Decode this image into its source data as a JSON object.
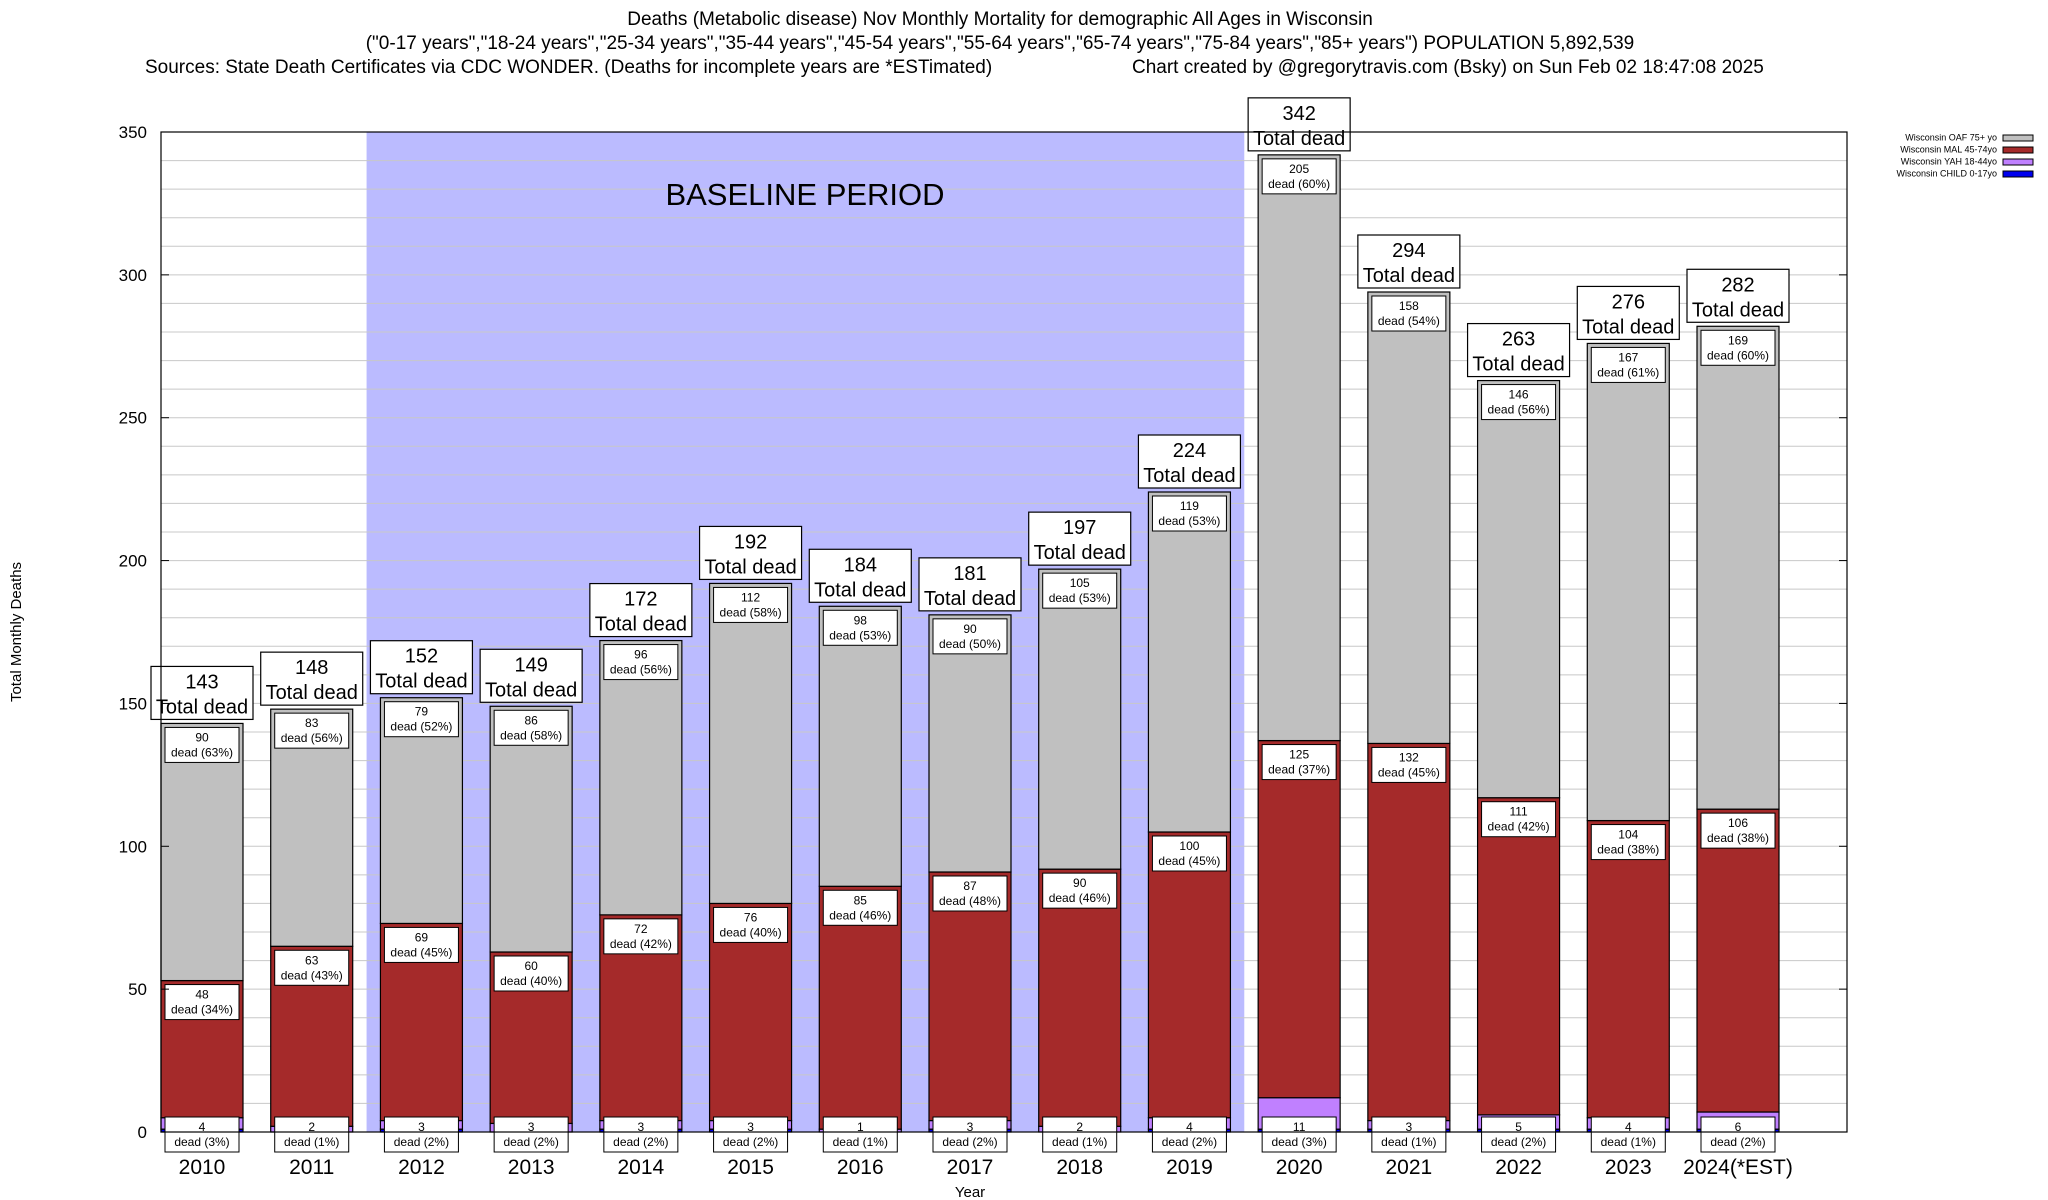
{
  "chart_data": {
    "type": "bar",
    "stacked": true,
    "title": "Deaths (Metabolic disease) Nov Monthly Mortality for demographic All Ages in Wisconsin",
    "subtitle": "(\"0-17 years\",\"18-24 years\",\"25-34 years\",\"35-44 years\",\"45-54 years\",\"55-64 years\",\"65-74 years\",\"75-84 years\",\"85+ years\") POPULATION 5,892,539",
    "sources": "Sources: State Death Certificates via CDC WONDER. (Deaths for incomplete years are *ESTimated)",
    "credit": "Chart created by @gregorytravis.com (Bsky) on Sun Feb 02 18:47:08 2025",
    "xlabel": "Year",
    "ylabel": "Total Monthly Deaths",
    "ylim": [
      0,
      350
    ],
    "yticks": [
      0,
      50,
      100,
      150,
      200,
      250,
      300,
      350
    ],
    "grid": true,
    "legend_position": "top-right",
    "annotation": "BASELINE PERIOD",
    "baseline_range": [
      "2012",
      "2019"
    ],
    "total_suffix": "Total dead",
    "dead_word": "dead",
    "categories": [
      "2010",
      "2011",
      "2012",
      "2013",
      "2014",
      "2015",
      "2016",
      "2017",
      "2018",
      "2019",
      "2020",
      "2021",
      "2022",
      "2023",
      "2024(*EST)"
    ],
    "totals": [
      143,
      148,
      152,
      149,
      172,
      192,
      184,
      181,
      197,
      224,
      342,
      294,
      263,
      276,
      282
    ],
    "series": [
      {
        "name": "Wisconsin CHILD 0-17yo",
        "color": "#0000ee",
        "values": [
          1,
          0,
          1,
          0,
          1,
          1,
          0,
          1,
          0,
          1,
          1,
          1,
          1,
          1,
          1
        ]
      },
      {
        "name": "Wisconsin YAH 18-44yo",
        "color": "#c080ff",
        "values": [
          4,
          2,
          3,
          3,
          3,
          3,
          1,
          3,
          2,
          4,
          11,
          3,
          5,
          4,
          6
        ],
        "pct": [
          3,
          1,
          2,
          2,
          2,
          2,
          1,
          2,
          1,
          2,
          3,
          1,
          2,
          1,
          2
        ]
      },
      {
        "name": "Wisconsin MAL 45-74yo",
        "color": "#a52a2a",
        "values": [
          48,
          63,
          69,
          60,
          72,
          76,
          85,
          87,
          90,
          100,
          125,
          132,
          111,
          104,
          106
        ],
        "pct": [
          34,
          43,
          45,
          40,
          42,
          40,
          46,
          48,
          46,
          45,
          37,
          45,
          42,
          38,
          38
        ]
      },
      {
        "name": "Wisconsin OAF 75+ yo",
        "color": "#c0c0c0",
        "values": [
          90,
          83,
          79,
          86,
          96,
          112,
          98,
          90,
          105,
          119,
          205,
          158,
          146,
          167,
          169
        ],
        "pct": [
          63,
          56,
          52,
          58,
          56,
          58,
          53,
          50,
          53,
          53,
          60,
          54,
          56,
          61,
          60
        ]
      }
    ],
    "baseline_color": "#bbbbff"
  }
}
